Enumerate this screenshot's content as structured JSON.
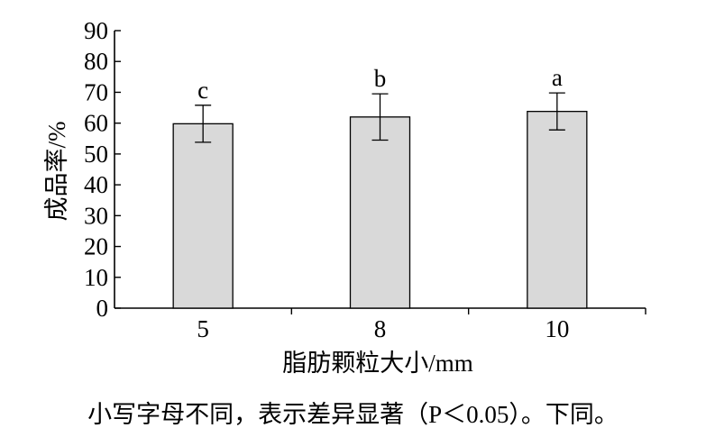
{
  "chart_data": {
    "type": "bar",
    "title": "",
    "xlabel": "脂肪颗粒大小/mm",
    "ylabel": "成品率/%",
    "categories": [
      "5",
      "8",
      "10"
    ],
    "values": [
      59.8,
      62.0,
      63.8
    ],
    "errors": [
      6.0,
      7.5,
      6.0
    ],
    "significance_letters": [
      "c",
      "b",
      "a"
    ],
    "ylim": [
      0,
      90
    ],
    "yticks": [
      0,
      10,
      20,
      30,
      40,
      50,
      60,
      70,
      80,
      90
    ],
    "grid": false,
    "legend": "none",
    "bar_color": "#d9d9d9",
    "edge_color": "#000000"
  },
  "footnote": "小写字母不同，表示差异显著（P＜0.05）。下同。"
}
